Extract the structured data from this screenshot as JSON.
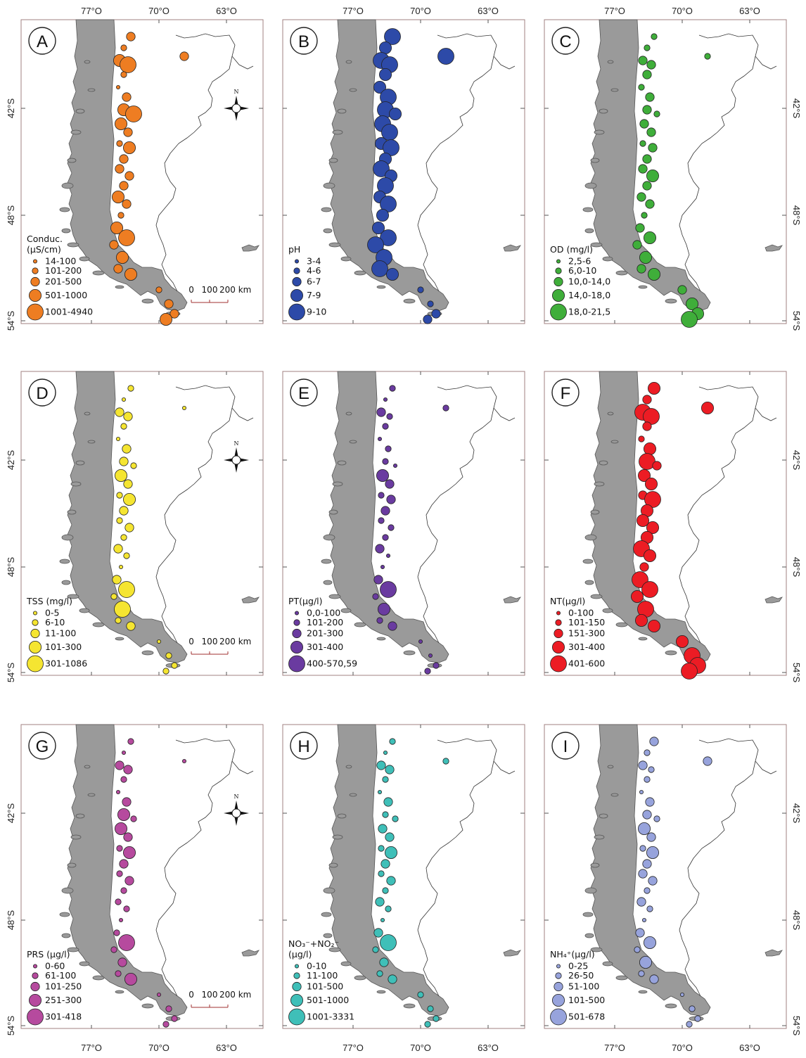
{
  "axes": {
    "lon_labels": [
      "77°O",
      "70°O",
      "63°O"
    ],
    "lat_labels": [
      "42°S",
      "48°S",
      "54°S"
    ]
  },
  "compass": {
    "north_label": "N"
  },
  "scale_bar": {
    "labels": [
      "0",
      "100",
      "200 km"
    ]
  },
  "panels": [
    {
      "letter": "A",
      "color": "#ee7d22",
      "legend_title": [
        "Conduc.",
        "(µS/cm)"
      ],
      "classes": [
        "14-100",
        "101-200",
        "201-500",
        "501-1000",
        "1001-4940"
      ],
      "show_compass": true,
      "show_scale": true
    },
    {
      "letter": "B",
      "color": "#2d4aa8",
      "legend_title": [
        "pH"
      ],
      "classes": [
        "3-4",
        "4-6",
        "6-7",
        "7-9",
        "9-10"
      ],
      "show_compass": false,
      "show_scale": false
    },
    {
      "letter": "C",
      "color": "#3fae3a",
      "legend_title": [
        "OD (mg/l)"
      ],
      "classes": [
        "2,5-6",
        "6,0-10",
        "10,0-14,0",
        "14,0-18,0",
        "18,0-21,5"
      ],
      "show_compass": false,
      "show_scale": false
    },
    {
      "letter": "D",
      "color": "#f5e531",
      "legend_title": [
        "TSS (mg/l)"
      ],
      "classes": [
        "0-5",
        "6-10",
        "11-100",
        "101-300",
        "301-1086"
      ],
      "show_compass": true,
      "show_scale": true
    },
    {
      "letter": "E",
      "color": "#6a3ba0",
      "legend_title": [
        "PT(µg/l)"
      ],
      "classes": [
        "0,0-100",
        "101-200",
        "201-300",
        "301-400",
        "400-570,59"
      ],
      "show_compass": false,
      "show_scale": false
    },
    {
      "letter": "F",
      "color": "#ec1c24",
      "legend_title": [
        "NT(µg/l)"
      ],
      "classes": [
        "0-100",
        "101-150",
        "151-300",
        "301-400",
        "401-600"
      ],
      "show_compass": false,
      "show_scale": false
    },
    {
      "letter": "G",
      "color": "#b64a9e",
      "legend_title": [
        "PRS (µg/l)"
      ],
      "classes": [
        "0-60",
        "61-100",
        "101-250",
        "251-300",
        "301-418"
      ],
      "show_compass": true,
      "show_scale": true
    },
    {
      "letter": "H",
      "color": "#3fbfb8",
      "legend_title": [
        "NO₃⁻+NO₂⁻",
        "(µg/l)"
      ],
      "classes": [
        "0-10",
        "11-100",
        "101-500",
        "501-1000",
        "1001-3331"
      ],
      "show_compass": false,
      "show_scale": false
    },
    {
      "letter": "I",
      "color": "#97a3dc",
      "legend_title": [
        "NH₄⁺(µg/l)"
      ],
      "classes": [
        "0-25",
        "26-50",
        "51-100",
        "101-500",
        "501-678"
      ],
      "show_compass": false,
      "show_scale": false
    }
  ]
}
